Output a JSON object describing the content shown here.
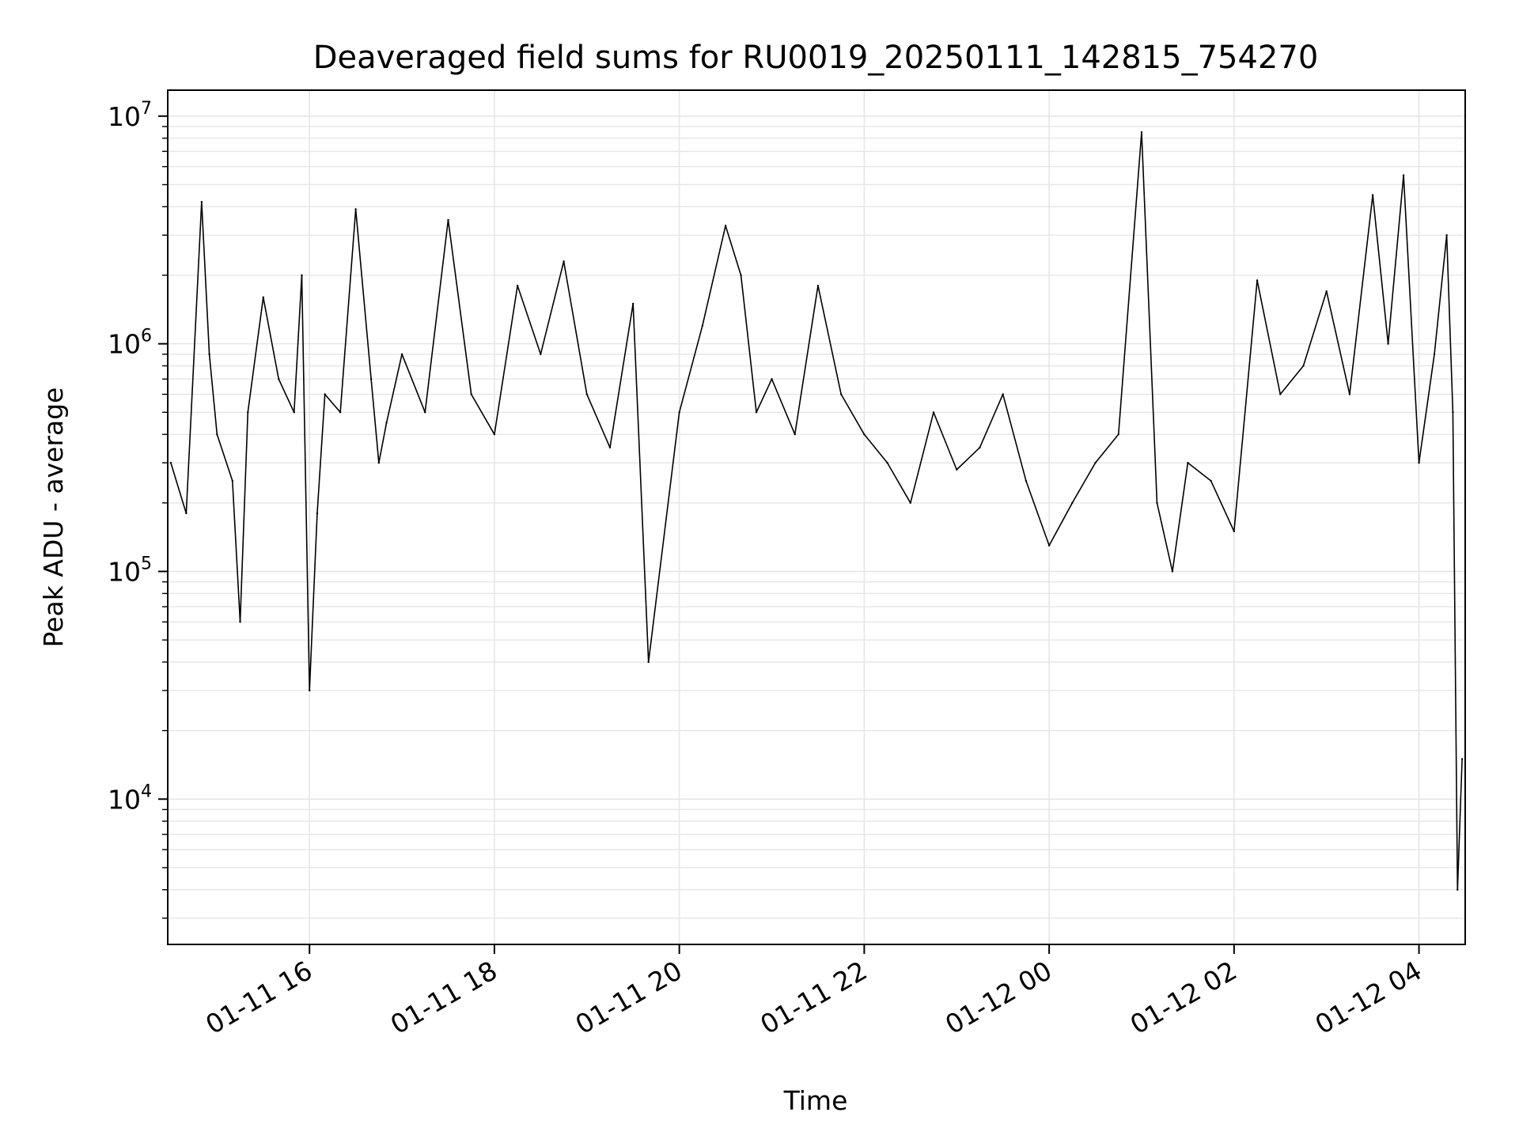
{
  "chart_data": {
    "type": "line",
    "title": "Deaveraged field sums for RU0019_20250111_142815_754270",
    "xlabel": "Time",
    "ylabel": "Peak ADU - average",
    "yscale": "log",
    "ylim": [
      2300,
      13000000
    ],
    "xlim": [
      "2025-01-11 14:28",
      "2025-01-12 04:30"
    ],
    "grid": true,
    "grid_color": "#e6e6e6",
    "line_color": "#000000",
    "x_ticks": [
      "2025-01-11 16:00",
      "2025-01-11 18:00",
      "2025-01-11 20:00",
      "2025-01-11 22:00",
      "2025-01-12 00:00",
      "2025-01-12 02:00",
      "2025-01-12 04:00"
    ],
    "x_tick_labels": [
      "01-11 16",
      "01-11 18",
      "01-11 20",
      "01-11 22",
      "01-12 00",
      "01-12 02",
      "01-12 04"
    ],
    "y_ticks": [
      10000,
      100000,
      1000000,
      10000000
    ],
    "y_tick_labels": [
      {
        "base": "10",
        "exp": "4"
      },
      {
        "base": "10",
        "exp": "5"
      },
      {
        "base": "10",
        "exp": "6"
      },
      {
        "base": "10",
        "exp": "7"
      }
    ],
    "series": [
      {
        "x": [
          "2025-01-11 14:30",
          "2025-01-11 14:40",
          "2025-01-11 14:50",
          "2025-01-11 14:55",
          "2025-01-11 15:00",
          "2025-01-11 15:10",
          "2025-01-11 15:15",
          "2025-01-11 15:20",
          "2025-01-11 15:30",
          "2025-01-11 15:40",
          "2025-01-11 15:50",
          "2025-01-11 15:55",
          "2025-01-11 16:00",
          "2025-01-11 16:05",
          "2025-01-11 16:10",
          "2025-01-11 16:20",
          "2025-01-11 16:30",
          "2025-01-11 16:40",
          "2025-01-11 16:45",
          "2025-01-11 16:50",
          "2025-01-11 17:00",
          "2025-01-11 17:15",
          "2025-01-11 17:30",
          "2025-01-11 17:45",
          "2025-01-11 18:00",
          "2025-01-11 18:15",
          "2025-01-11 18:30",
          "2025-01-11 18:45",
          "2025-01-11 19:00",
          "2025-01-11 19:15",
          "2025-01-11 19:30",
          "2025-01-11 19:40",
          "2025-01-11 20:00",
          "2025-01-11 20:15",
          "2025-01-11 20:30",
          "2025-01-11 20:40",
          "2025-01-11 20:50",
          "2025-01-11 21:00",
          "2025-01-11 21:15",
          "2025-01-11 21:30",
          "2025-01-11 21:45",
          "2025-01-11 22:00",
          "2025-01-11 22:15",
          "2025-01-11 22:30",
          "2025-01-11 22:45",
          "2025-01-11 23:00",
          "2025-01-11 23:15",
          "2025-01-11 23:30",
          "2025-01-11 23:45",
          "2025-01-12 00:00",
          "2025-01-12 00:15",
          "2025-01-12 00:30",
          "2025-01-12 00:45",
          "2025-01-12 01:00",
          "2025-01-12 01:10",
          "2025-01-12 01:20",
          "2025-01-12 01:30",
          "2025-01-12 01:45",
          "2025-01-12 02:00",
          "2025-01-12 02:15",
          "2025-01-12 02:30",
          "2025-01-12 02:45",
          "2025-01-12 03:00",
          "2025-01-12 03:15",
          "2025-01-12 03:30",
          "2025-01-12 03:40",
          "2025-01-12 03:50",
          "2025-01-12 04:00",
          "2025-01-12 04:10",
          "2025-01-12 04:18",
          "2025-01-12 04:22",
          "2025-01-12 04:25",
          "2025-01-12 04:28"
        ],
        "y": [
          300000,
          180000,
          4200000,
          900000,
          400000,
          250000,
          60000,
          500000,
          1600000,
          700000,
          500000,
          2000000,
          30000,
          180000,
          600000,
          500000,
          3900000,
          700000,
          300000,
          450000,
          900000,
          500000,
          3500000,
          600000,
          400000,
          1800000,
          900000,
          2300000,
          600000,
          350000,
          1500000,
          40000,
          500000,
          1200000,
          3300000,
          2000000,
          500000,
          700000,
          400000,
          1800000,
          600000,
          400000,
          300000,
          200000,
          500000,
          280000,
          350000,
          600000,
          250000,
          130000,
          200000,
          300000,
          400000,
          8500000,
          200000,
          100000,
          300000,
          250000,
          150000,
          1900000,
          600000,
          800000,
          1700000,
          600000,
          4500000,
          1000000,
          5500000,
          300000,
          900000,
          3000000,
          500000,
          4000,
          15000
        ]
      }
    ]
  }
}
